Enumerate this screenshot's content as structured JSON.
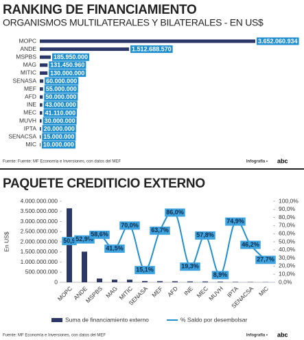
{
  "chart_data": [
    {
      "type": "hbar",
      "title": "RANKING DE FINANCIAMIENTO",
      "subtitle": "ORGANISMOS MULTILATERALES Y BILATERALES - EN US$",
      "categories": [
        "MOPC",
        "ANDE",
        "MSPBS",
        "MAG",
        "MITIC",
        "SENASA",
        "MEF",
        "AFD",
        "INE",
        "MEC",
        "MUVH",
        "IPTA",
        "SENACSA",
        "MIC"
      ],
      "values": [
        3652060934,
        1512688570,
        185950000,
        131450960,
        130000000,
        60000000,
        55000000,
        50000000,
        43000000,
        41110000,
        30000000,
        20000000,
        15000000,
        10000000
      ],
      "value_labels": [
        "3.652.060.934",
        "1.512.688.570",
        "185.950.000",
        "131.450.960",
        "130.000.000",
        "60.000.000",
        "55.000.000",
        "50.000.000",
        "43.000.000",
        "41.110.000",
        "30.000.000",
        "20.000.000",
        "15.000.000",
        "10.000.000"
      ],
      "color": "#2b3767",
      "label_color": "#1f8fd0",
      "source": "Fuente: Fuente: MF Economía e Inversiones, con datos del MEF",
      "credit": "Infografía •",
      "logo": "abc"
    },
    {
      "type": "combo",
      "title": "PAQUETE CREDITICIO EXTERNO",
      "ylabel": "En US$",
      "categories": [
        "MOPC",
        "ANDE",
        "MSPBS",
        "MAG",
        "MITIC",
        "SENASA",
        "MEF",
        "AFD",
        "INE",
        "MEC",
        "MUVH",
        "IPTA",
        "SENACSA",
        "MIC"
      ],
      "ylim": [
        0,
        4000000000
      ],
      "yticks": [
        0,
        {
          "value": 500000000,
          "label": "500.000.000"
        },
        {
          "value": 1000000000,
          "label": "1.000.000.000"
        },
        {
          "value": 1500000000,
          "label": "1.500.000.000"
        },
        {
          "value": 2000000000,
          "label": "2.000.000.000"
        },
        {
          "value": 2500000000,
          "label": "2.500.000.000"
        },
        {
          "value": 3000000000,
          "label": "3.000.000.000"
        },
        {
          "value": 3500000000,
          "label": "3.500.000.000"
        },
        {
          "value": 4000000000,
          "label": "4.000.000.000"
        }
      ],
      "y2lim": [
        0,
        100
      ],
      "y2ticks": [
        {
          "value": 0,
          "label": "0,0%"
        },
        {
          "value": 10,
          "label": "10,0%"
        },
        {
          "value": 20,
          "label": "20,0%"
        },
        {
          "value": 30,
          "label": "30,0%"
        },
        {
          "value": 40,
          "label": "40,0%"
        },
        {
          "value": 50,
          "label": "50,0%"
        },
        {
          "value": 60,
          "label": "60,0%"
        },
        {
          "value": 70,
          "label": "70,0%"
        },
        {
          "value": 80,
          "label": "80,0%"
        },
        {
          "value": 90,
          "label": "90,0%"
        },
        {
          "value": 100,
          "label": "100,0%"
        }
      ],
      "series": [
        {
          "name": "Suma de financiamiento externo",
          "type": "bar",
          "color": "#2b3767",
          "values": [
            3652060934,
            1512688570,
            185950000,
            131450960,
            130000000,
            60000000,
            55000000,
            50000000,
            43000000,
            41110000,
            30000000,
            20000000,
            15000000,
            10000000
          ]
        },
        {
          "name": "% Saldo por desembolsar",
          "type": "line",
          "axis": "y2",
          "color": "#1f8fd0",
          "values": [
            50.9,
            52.9,
            58.6,
            41.5,
            70.0,
            15.1,
            63.7,
            86.0,
            19.3,
            57.8,
            8.9,
            74.9,
            46.2,
            27.7
          ],
          "value_labels": [
            "50,9",
            "52,9%",
            "58,6%",
            "41,5%",
            "70,0%",
            "15,1%",
            "63,7%",
            "86,0%",
            "19,3%",
            "57,8%",
            "8,9%",
            "74,9%",
            "46,2%",
            "27,7%"
          ]
        }
      ],
      "source": "Fuente: MF Economía e Inversiones, con datos del MEF",
      "credit": "Infografía •",
      "logo": "abc"
    }
  ]
}
